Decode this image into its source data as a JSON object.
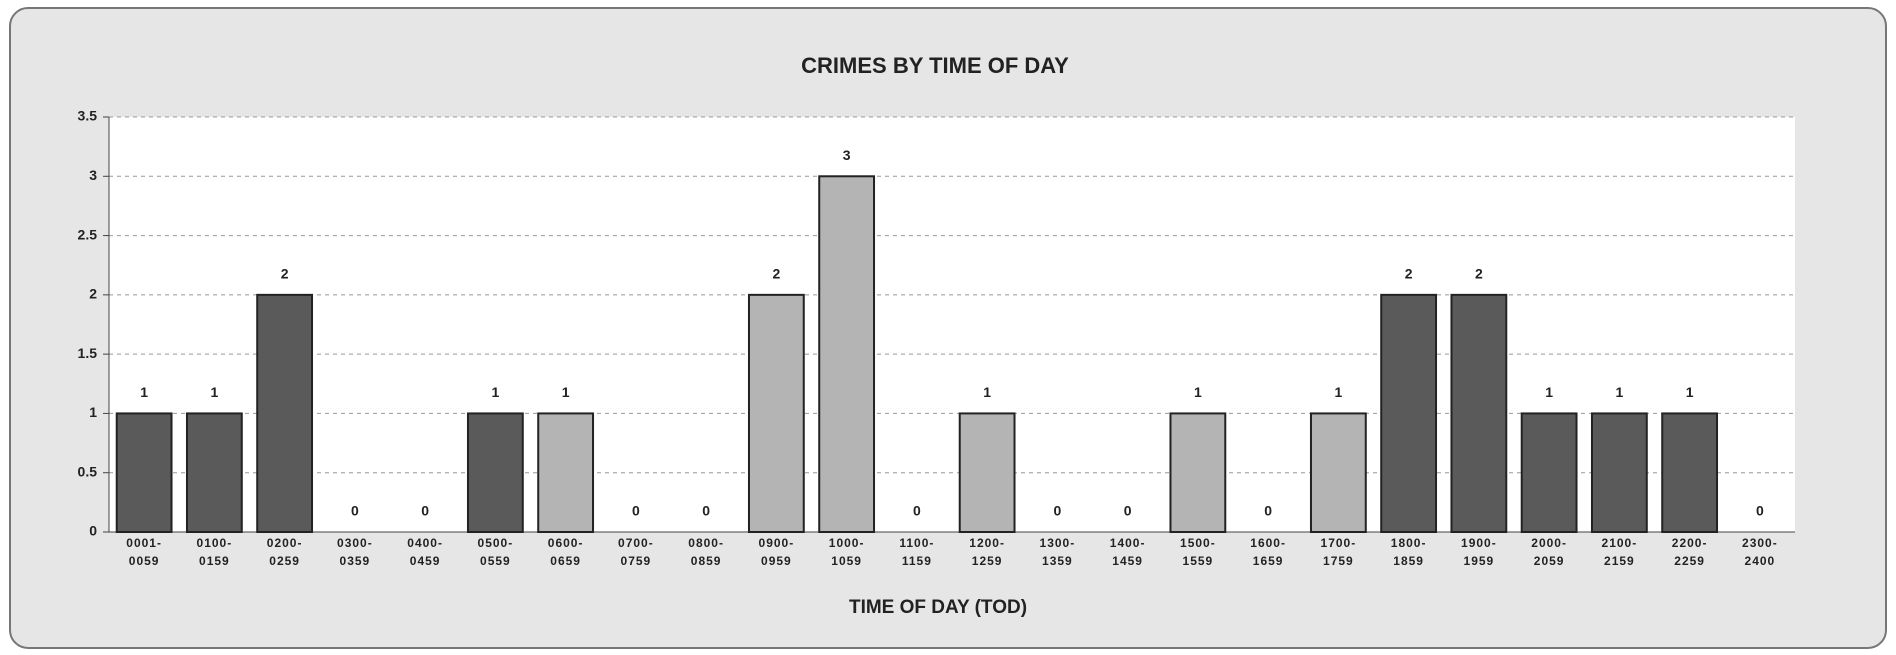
{
  "chart_data": {
    "type": "bar",
    "title": "CRIMES BY TIME OF DAY",
    "x_label": "TIME OF DAY (TOD)",
    "categories": [
      "0001-0059",
      "0100-0159",
      "0200-0259",
      "0300-0359",
      "0400-0459",
      "0500-0559",
      "0600-0659",
      "0700-0759",
      "0800-0859",
      "0900-0959",
      "1000-1059",
      "1100-1159",
      "1200-1259",
      "1300-1359",
      "1400-1459",
      "1500-1559",
      "1600-1659",
      "1700-1759",
      "1800-1859",
      "1900-1959",
      "2000-2059",
      "2100-2159",
      "2200-2259",
      "2300-2400"
    ],
    "values": [
      1,
      1,
      2,
      0,
      0,
      1,
      1,
      0,
      0,
      2,
      3,
      0,
      1,
      0,
      0,
      1,
      0,
      1,
      2,
      2,
      1,
      1,
      1,
      0
    ],
    "colors": [
      "#5a5a5a",
      "#5a5a5a",
      "#5a5a5a",
      "#5a5a5a",
      "#5a5a5a",
      "#5a5a5a",
      "#b4b4b4",
      "#b4b4b4",
      "#b4b4b4",
      "#b4b4b4",
      "#b4b4b4",
      "#b4b4b4",
      "#b4b4b4",
      "#b4b4b4",
      "#b4b4b4",
      "#b4b4b4",
      "#b4b4b4",
      "#b4b4b4",
      "#5a5a5a",
      "#5a5a5a",
      "#5a5a5a",
      "#5a5a5a",
      "#5a5a5a",
      "#5a5a5a"
    ],
    "ylim": [
      0,
      3.5
    ],
    "yticks": [
      0,
      0.5,
      1,
      1.5,
      2,
      2.5,
      3,
      3.5
    ],
    "grid": true
  }
}
